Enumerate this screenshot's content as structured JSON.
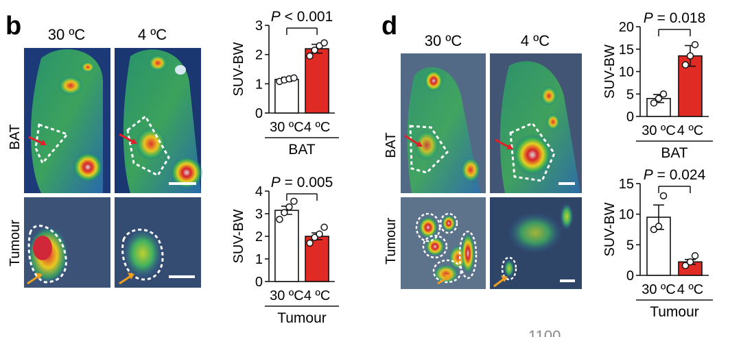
{
  "figure": {
    "panel_b": "b",
    "panel_d": "d",
    "col_warm": "30 ºC",
    "col_cold": "4 ºC",
    "row_bat": "BAT",
    "row_tumour": "Tumour",
    "page_number_fragment": "1100"
  },
  "colors": {
    "cold_bar": "#e02a24",
    "warm_bar": "#ffffff",
    "bar_edge": "#111111",
    "arrow_red": "#e0202a",
    "arrow_orange": "#f0a020",
    "dashed": "#ffffff"
  },
  "chart_data": [
    {
      "id": "b-bat",
      "type": "bar",
      "title": "P < 0.001",
      "ylabel": "SUV-BW",
      "xlabel": "BAT",
      "categories": [
        "30 ºC",
        "4 ºC"
      ],
      "values": [
        1.15,
        2.2
      ],
      "errors": [
        0.07,
        0.15
      ],
      "points": [
        [
          1.08,
          1.13,
          1.17,
          1.2
        ],
        [
          1.95,
          2.15,
          2.3,
          2.4
        ]
      ],
      "ylim": [
        0,
        3
      ],
      "yticks": [
        "0",
        "1",
        "2",
        "3"
      ]
    },
    {
      "id": "b-tumour",
      "type": "bar",
      "title": "P = 0.005",
      "ylabel": "SUV-BW",
      "xlabel": "Tumour",
      "categories": [
        "30 ºC",
        "4 ºC"
      ],
      "values": [
        3.15,
        2.0
      ],
      "errors": [
        0.18,
        0.15
      ],
      "points": [
        [
          2.75,
          3.05,
          3.3,
          3.55
        ],
        [
          1.7,
          1.95,
          2.1,
          2.4
        ]
      ],
      "ylim": [
        0,
        4
      ],
      "yticks": [
        "0",
        "1",
        "2",
        "3",
        "4"
      ]
    },
    {
      "id": "d-bat",
      "type": "bar",
      "title": "P = 0.018",
      "ylabel": "SUV-BW",
      "xlabel": "BAT",
      "categories": [
        "30 ºC",
        "4 ºC"
      ],
      "values": [
        4.0,
        13.5
      ],
      "errors": [
        0.9,
        2.3
      ],
      "points": [
        [
          3.0,
          4.0,
          5.0
        ],
        [
          11.5,
          13.5,
          16.0
        ]
      ],
      "ylim": [
        0,
        20
      ],
      "yticks": [
        "0",
        "5",
        "10",
        "15",
        "20"
      ]
    },
    {
      "id": "d-tumour",
      "type": "bar",
      "title": "P = 0.024",
      "ylabel": "SUV-BW",
      "xlabel": "Tumour",
      "categories": [
        "30 ºC",
        "4 ºC"
      ],
      "values": [
        9.5,
        2.2
      ],
      "errors": [
        2.0,
        0.4
      ],
      "points": [
        [
          7.5,
          8.0,
          13.0
        ],
        [
          1.6,
          2.2,
          3.2
        ]
      ],
      "ylim": [
        0,
        15
      ],
      "yticks": [
        "0",
        "5",
        "10",
        "15"
      ]
    }
  ]
}
